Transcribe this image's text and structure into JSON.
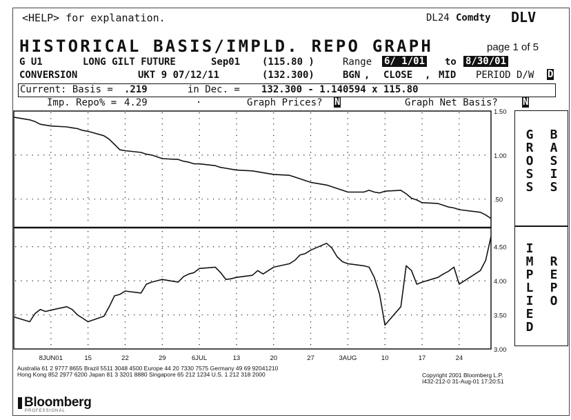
{
  "header": {
    "help_text": "<HELP> for explanation.",
    "ticker_prefix": "DL24",
    "ticker_sector": "Comdty",
    "function_code": "DLV",
    "title": "HISTORICAL BASIS/IMPLD. REPO GRAPH",
    "page_indicator": "page 1 of 5"
  },
  "security": {
    "ticker": "G U1",
    "description": "LONG GILT FUTURE",
    "contract_month": "Sep01",
    "price": "(115.80 )",
    "range_label": "Range",
    "range_start": "6/ 1/01",
    "range_to": "to",
    "range_end": "8/30/01",
    "conversion_label": "CONVERSION",
    "bond": "UKT 9 07/12/11",
    "bond_price": "(132.300)",
    "pricing_source": "BGN",
    "price_close": "CLOSE",
    "price_mid": "MID",
    "period_label": "PERIOD D/W",
    "period_value": "D"
  },
  "formula": {
    "current_basis_label": "Current: Basis =",
    "current_basis_value": ".219",
    "in_dec_label": "in Dec. =",
    "equation": "132.300 - 1.140594 x 115.80"
  },
  "controls": {
    "imp_repo_label": "Imp. Repo% =",
    "imp_repo_value": "4.29",
    "dot": "·",
    "graph_prices_label": "Graph Prices?",
    "graph_prices_value": "N",
    "graph_net_basis_label": "Graph Net Basis?",
    "graph_net_basis_value": "N"
  },
  "side_labels": {
    "gross_basis_left": "GROSS",
    "gross_basis_right": "BASIS",
    "implied_repo_left": "IMPLIED",
    "implied_repo_right": "REPO"
  },
  "footer": {
    "line1_left": "Australia 61 2 9777 8655          Brazil 5511 3048 4500          Europe 44 20 7330 7575           Germany 49 69 92041210",
    "line2_left": "Hong Kong 852 2977 6200 Japan 81 3 3201 8880 Singapore 65 212 1234 U.S. 1 212 318 2000",
    "copyright": "Copyright 2001 Bloomberg L.P.",
    "code_timestamp": "I432-212-0 31-Aug-01 17:20:51",
    "logo": "Bloomberg",
    "logo_sub": "PROFESSIONAL"
  },
  "chart_data": [
    {
      "type": "line",
      "title": "",
      "xlabel": "",
      "ylabel": "",
      "x_tick_labels": [
        "8JUN01",
        "15",
        "22",
        "29",
        "6JUL",
        "13",
        "20",
        "27",
        "3AUG",
        "10",
        "17",
        "24"
      ],
      "x_range": [
        "2001-06-01",
        "2001-08-30"
      ],
      "ylim": [
        0.2,
        1.5
      ],
      "y_ticks": [
        "1.50",
        "1.00",
        ".50"
      ],
      "grid": true,
      "color": "#111111",
      "series": [
        {
          "x": [
            "06-01",
            "06-04",
            "06-05",
            "06-06",
            "06-07",
            "06-08",
            "06-11",
            "06-12",
            "06-13",
            "06-14",
            "06-15",
            "06-18",
            "06-19",
            "06-20",
            "06-21",
            "06-22",
            "06-25",
            "06-26",
            "06-27",
            "06-28",
            "06-29",
            "07-02",
            "07-03",
            "07-04",
            "07-05",
            "07-06",
            "07-09",
            "07-10",
            "07-11",
            "07-12",
            "07-13",
            "07-16",
            "07-17",
            "07-18",
            "07-19",
            "07-20",
            "07-23",
            "07-24",
            "07-25",
            "07-26",
            "07-27",
            "07-30",
            "07-31",
            "08-01",
            "08-02",
            "08-03",
            "08-06",
            "08-07",
            "08-08",
            "08-09",
            "08-10",
            "08-13",
            "08-14",
            "08-15",
            "08-16",
            "08-17",
            "08-20",
            "08-21",
            "08-22",
            "08-23",
            "08-24",
            "08-28",
            "08-29",
            "08-30"
          ],
          "values": [
            1.43,
            1.4,
            1.38,
            1.35,
            1.34,
            1.33,
            1.32,
            1.31,
            1.3,
            1.28,
            1.27,
            1.22,
            1.18,
            1.12,
            1.06,
            1.05,
            1.03,
            1.01,
            1.0,
            0.98,
            0.96,
            0.95,
            0.93,
            0.92,
            0.9,
            0.9,
            0.88,
            0.86,
            0.85,
            0.84,
            0.83,
            0.82,
            0.81,
            0.8,
            0.79,
            0.78,
            0.77,
            0.75,
            0.73,
            0.71,
            0.69,
            0.66,
            0.64,
            0.62,
            0.6,
            0.58,
            0.58,
            0.6,
            0.58,
            0.57,
            0.59,
            0.6,
            0.56,
            0.51,
            0.49,
            0.46,
            0.45,
            0.43,
            0.41,
            0.4,
            0.38,
            0.35,
            0.32,
            0.28
          ]
        }
      ]
    },
    {
      "type": "line",
      "title": "",
      "xlabel": "",
      "ylabel": "",
      "x_tick_labels": [
        "8JUN01",
        "15",
        "22",
        "29",
        "6JUL",
        "13",
        "20",
        "27",
        "3AUG",
        "10",
        "17",
        "24"
      ],
      "x_range": [
        "2001-06-01",
        "2001-08-30"
      ],
      "ylim": [
        3.0,
        4.75
      ],
      "y_ticks": [
        "4.50",
        "4.00",
        "3.50",
        "3.00"
      ],
      "grid": true,
      "color": "#111111",
      "series": [
        {
          "x": [
            "06-01",
            "06-04",
            "06-05",
            "06-06",
            "06-07",
            "06-08",
            "06-11",
            "06-12",
            "06-13",
            "06-14",
            "06-15",
            "06-18",
            "06-19",
            "06-20",
            "06-21",
            "06-22",
            "06-25",
            "06-26",
            "06-27",
            "06-28",
            "06-29",
            "07-02",
            "07-03",
            "07-04",
            "07-05",
            "07-06",
            "07-09",
            "07-10",
            "07-11",
            "07-12",
            "07-13",
            "07-16",
            "07-17",
            "07-18",
            "07-19",
            "07-20",
            "07-23",
            "07-24",
            "07-25",
            "07-26",
            "07-27",
            "07-30",
            "07-31",
            "08-01",
            "08-02",
            "08-03",
            "08-06",
            "08-07",
            "08-08",
            "08-09",
            "08-10",
            "08-13",
            "08-14",
            "08-15",
            "08-16",
            "08-17",
            "08-20",
            "08-21",
            "08-22",
            "08-23",
            "08-24",
            "08-28",
            "08-29",
            "08-30"
          ],
          "values": [
            3.47,
            3.4,
            3.52,
            3.58,
            3.55,
            3.57,
            3.62,
            3.58,
            3.5,
            3.45,
            3.4,
            3.48,
            3.62,
            3.78,
            3.8,
            3.85,
            3.82,
            3.95,
            3.98,
            4.0,
            4.02,
            3.98,
            4.06,
            4.1,
            4.12,
            4.18,
            4.2,
            4.12,
            4.02,
            4.03,
            4.05,
            4.08,
            4.15,
            4.1,
            4.15,
            4.2,
            4.25,
            4.3,
            4.38,
            4.4,
            4.45,
            4.55,
            4.48,
            4.35,
            4.28,
            4.25,
            4.22,
            4.2,
            4.05,
            3.8,
            3.35,
            3.62,
            4.22,
            4.15,
            3.95,
            3.98,
            4.05,
            4.1,
            4.14,
            4.2,
            3.95,
            4.15,
            4.3,
            4.65
          ]
        }
      ]
    }
  ]
}
